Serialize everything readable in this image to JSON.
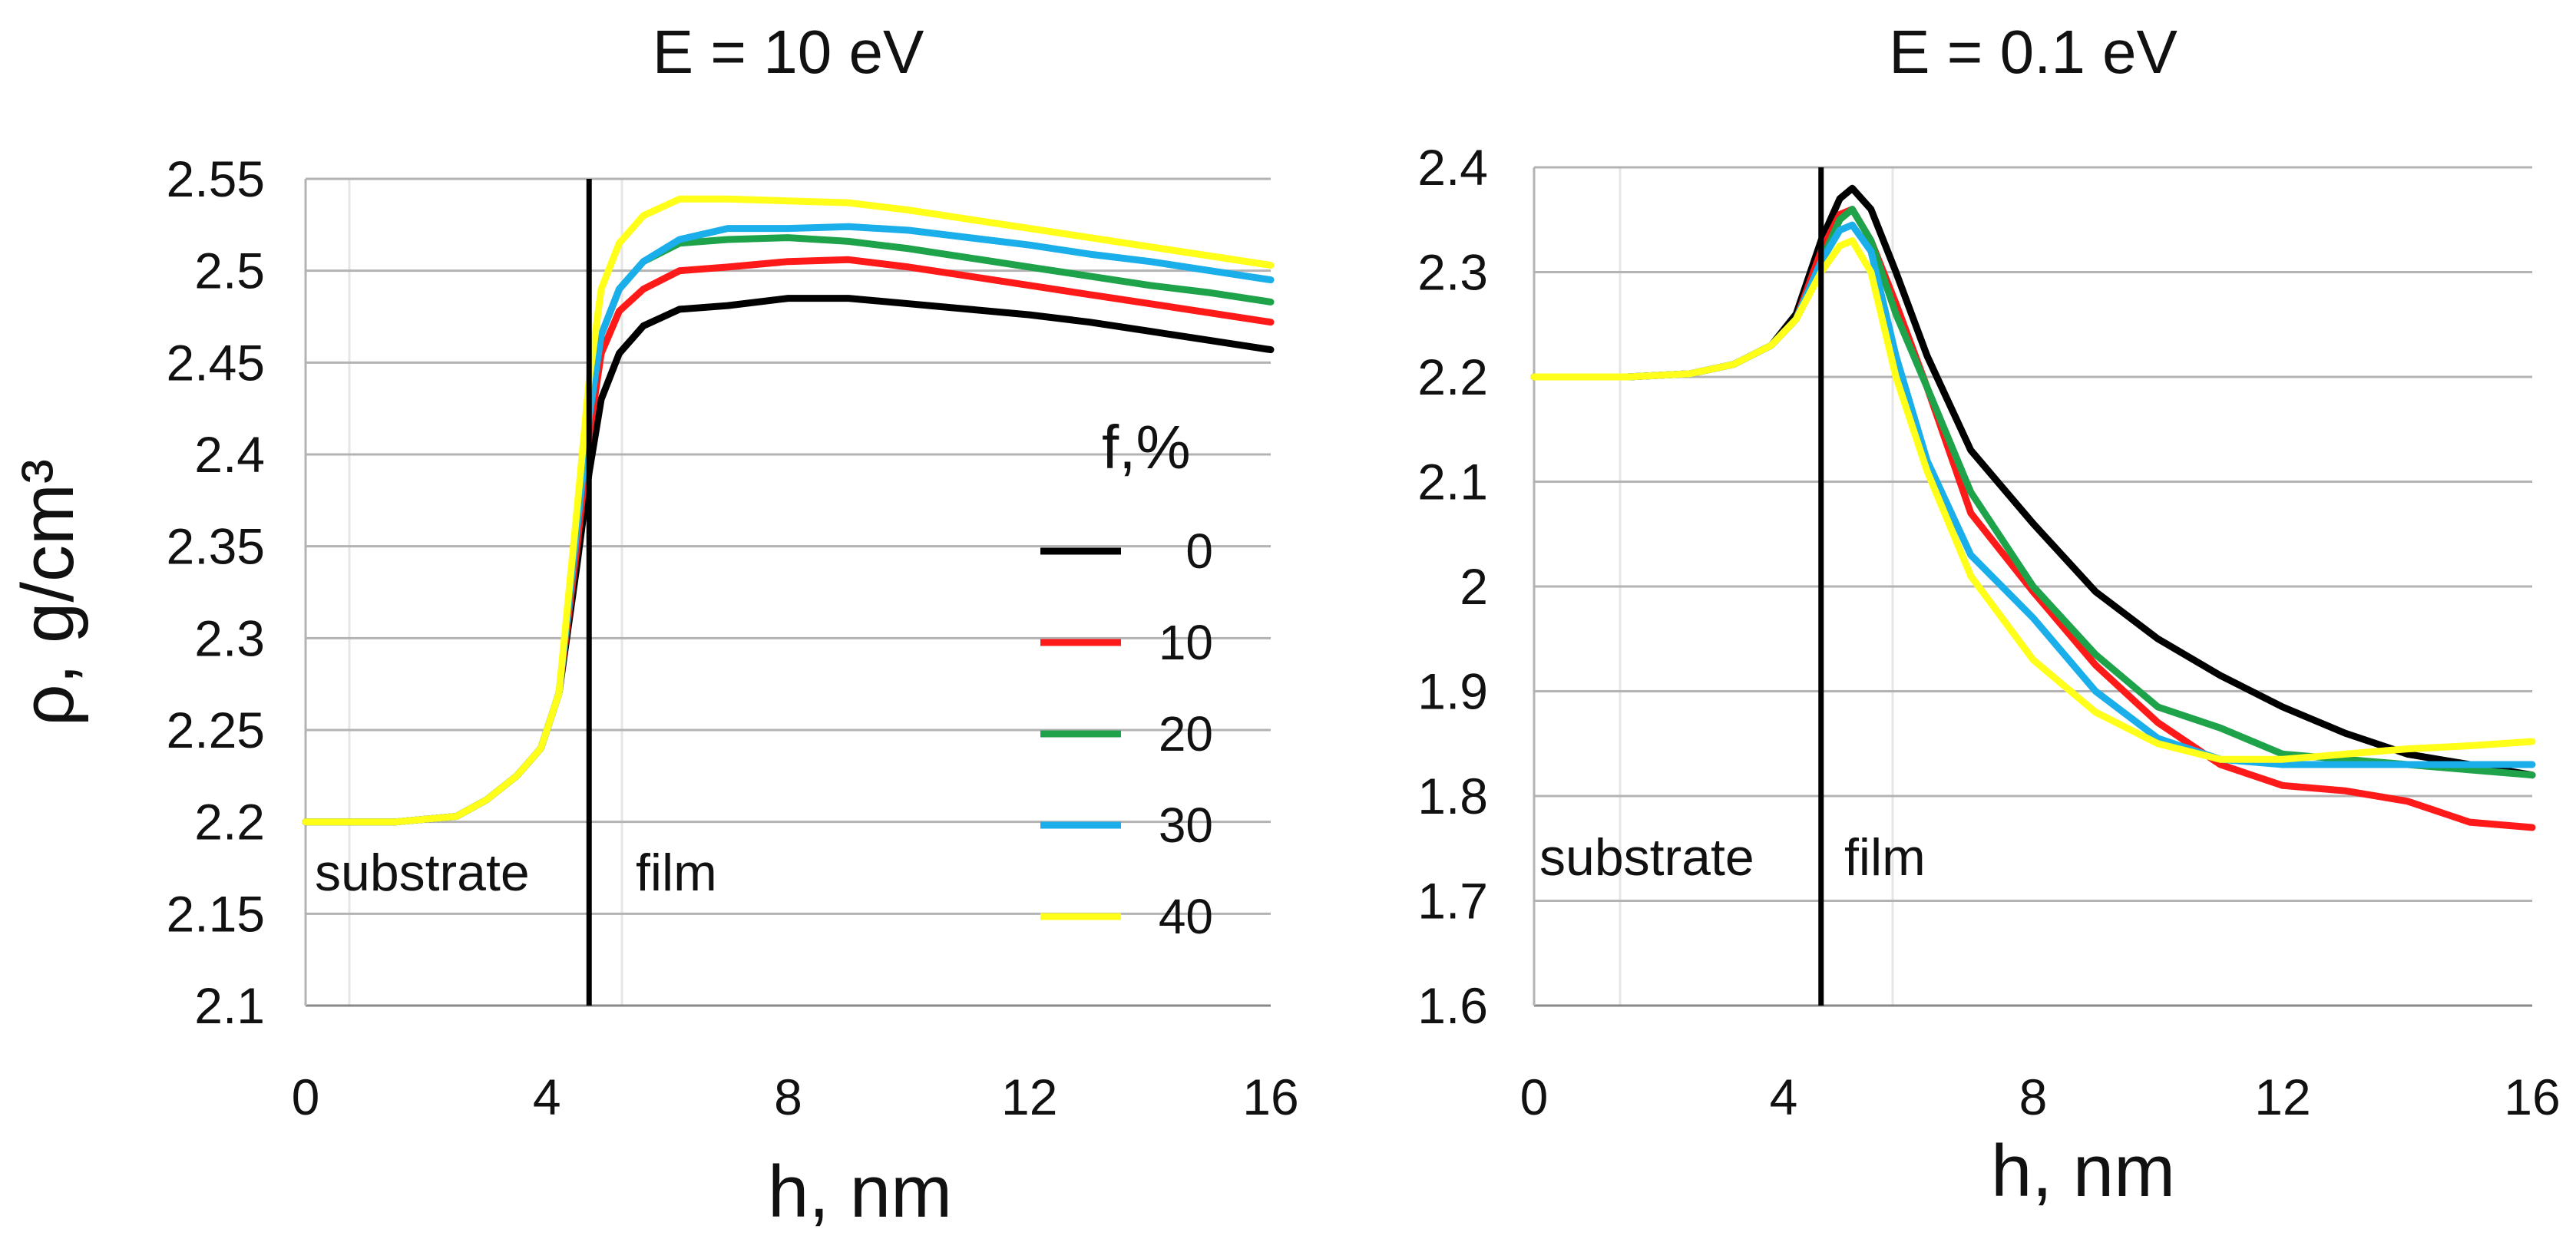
{
  "chart_data": [
    {
      "type": "line",
      "title": "E = 10 eV",
      "xlabel": "h, nm",
      "ylabel": "ρ, g/cm³",
      "xlim": [
        0,
        16
      ],
      "ylim": [
        2.1,
        2.55
      ],
      "xticks": [
        0,
        4,
        8,
        12,
        16
      ],
      "xtick_labels": [
        "0",
        "4",
        "8",
        "12",
        "16"
      ],
      "yticks": [
        2.1,
        2.15,
        2.2,
        2.25,
        2.3,
        2.35,
        2.4,
        2.45,
        2.5,
        2.55
      ],
      "ytick_labels": [
        "2.1",
        "2.15",
        "2.2",
        "2.25",
        "2.3",
        "2.35",
        "2.4",
        "2.45",
        "2.5",
        "2.55"
      ],
      "grid": "horizontal",
      "boundary_x": 4.7,
      "region_labels": [
        "substrate",
        "film"
      ],
      "legend": {
        "title": "f,%",
        "position": "right",
        "entries": [
          {
            "label": "0",
            "color": "#000000"
          },
          {
            "label": "10",
            "color": "#ff1a1a"
          },
          {
            "label": "20",
            "color": "#1fa34a"
          },
          {
            "label": "30",
            "color": "#1aaeea"
          },
          {
            "label": "40",
            "color": "#ffff1a"
          }
        ]
      },
      "series": [
        {
          "name": "0",
          "color": "#000000",
          "x": [
            0,
            1.5,
            2.5,
            3.0,
            3.5,
            3.9,
            4.2,
            4.5,
            4.7,
            4.9,
            5.2,
            5.6,
            6.2,
            7,
            8,
            9,
            10,
            11,
            12,
            13,
            14,
            15,
            16
          ],
          "y": [
            2.2,
            2.2,
            2.203,
            2.212,
            2.225,
            2.24,
            2.27,
            2.34,
            2.39,
            2.43,
            2.455,
            2.47,
            2.479,
            2.481,
            2.485,
            2.485,
            2.482,
            2.479,
            2.476,
            2.472,
            2.467,
            2.462,
            2.457
          ]
        },
        {
          "name": "10",
          "color": "#ff1a1a",
          "x": [
            0,
            1.5,
            2.5,
            3.0,
            3.5,
            3.9,
            4.2,
            4.5,
            4.7,
            4.9,
            5.2,
            5.6,
            6.2,
            7,
            8,
            9,
            10,
            11,
            12,
            13,
            14,
            15,
            16
          ],
          "y": [
            2.2,
            2.2,
            2.203,
            2.212,
            2.225,
            2.24,
            2.27,
            2.35,
            2.41,
            2.455,
            2.478,
            2.49,
            2.5,
            2.502,
            2.505,
            2.506,
            2.502,
            2.497,
            2.492,
            2.487,
            2.482,
            2.477,
            2.472
          ]
        },
        {
          "name": "20",
          "color": "#1fa34a",
          "x": [
            0,
            1.5,
            2.5,
            3.0,
            3.5,
            3.9,
            4.2,
            4.5,
            4.7,
            4.9,
            5.2,
            5.6,
            6.2,
            7,
            8,
            9,
            10,
            11,
            12,
            13,
            14,
            15,
            16
          ],
          "y": [
            2.2,
            2.2,
            2.203,
            2.212,
            2.225,
            2.24,
            2.27,
            2.36,
            2.42,
            2.465,
            2.49,
            2.505,
            2.515,
            2.517,
            2.518,
            2.516,
            2.512,
            2.507,
            2.502,
            2.497,
            2.492,
            2.488,
            2.483
          ]
        },
        {
          "name": "30",
          "color": "#1aaeea",
          "x": [
            0,
            1.5,
            2.5,
            3.0,
            3.5,
            3.9,
            4.2,
            4.5,
            4.7,
            4.9,
            5.2,
            5.6,
            6.2,
            7,
            8,
            9,
            10,
            11,
            12,
            13,
            14,
            15,
            16
          ],
          "y": [
            2.2,
            2.2,
            2.203,
            2.212,
            2.225,
            2.24,
            2.27,
            2.36,
            2.42,
            2.465,
            2.49,
            2.505,
            2.517,
            2.523,
            2.523,
            2.524,
            2.522,
            2.518,
            2.514,
            2.509,
            2.505,
            2.5,
            2.495
          ]
        },
        {
          "name": "40",
          "color": "#ffff1a",
          "x": [
            0,
            1.5,
            2.5,
            3.0,
            3.5,
            3.9,
            4.2,
            4.5,
            4.7,
            4.9,
            5.2,
            5.6,
            6.2,
            7,
            8,
            9,
            10,
            11,
            12,
            13,
            14,
            15,
            16
          ],
          "y": [
            2.2,
            2.2,
            2.203,
            2.212,
            2.225,
            2.24,
            2.27,
            2.37,
            2.44,
            2.49,
            2.515,
            2.53,
            2.539,
            2.539,
            2.538,
            2.537,
            2.533,
            2.528,
            2.523,
            2.518,
            2.513,
            2.508,
            2.503
          ]
        }
      ]
    },
    {
      "type": "line",
      "title": "E = 0.1 eV",
      "xlabel": "h, nm",
      "ylabel": "",
      "xlim": [
        0,
        16
      ],
      "ylim": [
        1.6,
        2.4
      ],
      "xticks": [
        0,
        4,
        8,
        12,
        16
      ],
      "xtick_labels": [
        "0",
        "4",
        "8",
        "12",
        "16"
      ],
      "yticks": [
        1.6,
        1.7,
        1.8,
        1.9,
        2.0,
        2.1,
        2.2,
        2.3,
        2.4
      ],
      "ytick_labels": [
        "1.6",
        "1.7",
        "1.8",
        "1.9",
        "2",
        "2.1",
        "2.2",
        "2.3",
        "2.4"
      ],
      "grid": "horizontal",
      "boundary_x": 4.6,
      "region_labels": [
        "substrate",
        "film"
      ],
      "series": [
        {
          "name": "0",
          "color": "#000000",
          "x": [
            0,
            1.5,
            2.5,
            3.2,
            3.8,
            4.2,
            4.6,
            4.9,
            5.1,
            5.4,
            5.8,
            6.3,
            7,
            8,
            9,
            10,
            11,
            12,
            13,
            14,
            15,
            16
          ],
          "y": [
            2.2,
            2.2,
            2.203,
            2.212,
            2.23,
            2.26,
            2.33,
            2.37,
            2.38,
            2.36,
            2.3,
            2.22,
            2.13,
            2.06,
            1.995,
            1.95,
            1.915,
            1.885,
            1.86,
            1.84,
            1.83,
            1.82
          ]
        },
        {
          "name": "10",
          "color": "#ff1a1a",
          "x": [
            0,
            1.5,
            2.5,
            3.2,
            3.8,
            4.2,
            4.6,
            4.9,
            5.1,
            5.4,
            5.8,
            6.3,
            7,
            8,
            9,
            10,
            11,
            12,
            13,
            14,
            15,
            16
          ],
          "y": [
            2.2,
            2.2,
            2.203,
            2.212,
            2.23,
            2.255,
            2.32,
            2.355,
            2.36,
            2.33,
            2.27,
            2.19,
            2.07,
            1.995,
            1.925,
            1.87,
            1.83,
            1.81,
            1.805,
            1.795,
            1.775,
            1.77
          ]
        },
        {
          "name": "20",
          "color": "#1fa34a",
          "x": [
            0,
            1.5,
            2.5,
            3.2,
            3.8,
            4.2,
            4.6,
            4.9,
            5.1,
            5.4,
            5.8,
            6.3,
            7,
            8,
            9,
            10,
            11,
            12,
            13,
            14,
            15,
            16
          ],
          "y": [
            2.2,
            2.2,
            2.203,
            2.212,
            2.23,
            2.255,
            2.31,
            2.35,
            2.36,
            2.33,
            2.26,
            2.19,
            2.09,
            2.0,
            1.935,
            1.885,
            1.865,
            1.84,
            1.835,
            1.83,
            1.825,
            1.82
          ]
        },
        {
          "name": "30",
          "color": "#1aaeea",
          "x": [
            0,
            1.5,
            2.5,
            3.2,
            3.8,
            4.2,
            4.6,
            4.9,
            5.1,
            5.4,
            5.8,
            6.3,
            7,
            8,
            9,
            10,
            11,
            12,
            13,
            14,
            15,
            16
          ],
          "y": [
            2.2,
            2.2,
            2.203,
            2.212,
            2.23,
            2.255,
            2.31,
            2.34,
            2.345,
            2.32,
            2.22,
            2.12,
            2.03,
            1.97,
            1.9,
            1.855,
            1.835,
            1.83,
            1.83,
            1.83,
            1.83,
            1.83
          ]
        },
        {
          "name": "40",
          "color": "#ffff1a",
          "x": [
            0,
            1.5,
            2.5,
            3.2,
            3.8,
            4.2,
            4.6,
            4.9,
            5.1,
            5.4,
            5.8,
            6.3,
            7,
            8,
            9,
            10,
            11,
            12,
            13,
            14,
            15,
            16
          ],
          "y": [
            2.2,
            2.2,
            2.203,
            2.212,
            2.23,
            2.255,
            2.3,
            2.325,
            2.33,
            2.3,
            2.2,
            2.11,
            2.01,
            1.93,
            1.88,
            1.85,
            1.835,
            1.835,
            1.84,
            1.845,
            1.848,
            1.852
          ]
        }
      ]
    }
  ]
}
